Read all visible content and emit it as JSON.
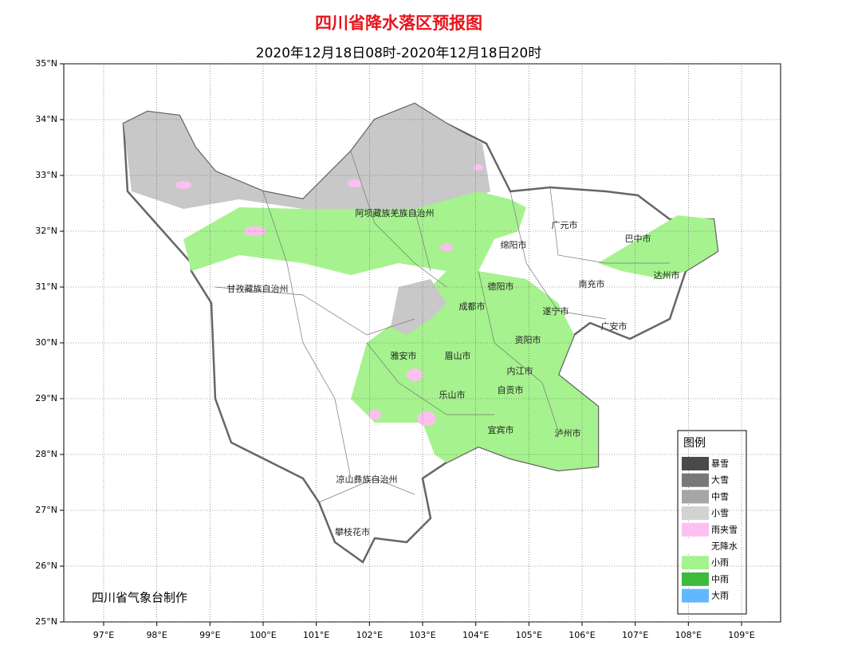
{
  "map": {
    "title": "四川省降水落区预报图",
    "subtitle": "2020年12月18日08时-2020年12月18日20时",
    "xlim": [
      96.25,
      109.735
    ],
    "ylim": [
      25,
      35
    ],
    "xticks": [
      {
        "value": 97,
        "label": "97°E"
      },
      {
        "value": 98,
        "label": "98°E"
      },
      {
        "value": 99,
        "label": "99°E"
      },
      {
        "value": 100,
        "label": "100°E"
      },
      {
        "value": 101,
        "label": "101°E"
      },
      {
        "value": 102,
        "label": "102°E"
      },
      {
        "value": 103,
        "label": "103°E"
      },
      {
        "value": 104,
        "label": "104°E"
      },
      {
        "value": 105,
        "label": "105°E"
      },
      {
        "value": 106,
        "label": "106°E"
      },
      {
        "value": 107,
        "label": "107°E"
      },
      {
        "value": 108,
        "label": "108°E"
      },
      {
        "value": 109,
        "label": "109°E"
      }
    ],
    "yticks": [
      {
        "value": 25,
        "label": "25°N"
      },
      {
        "value": 26,
        "label": "26°N"
      },
      {
        "value": 27,
        "label": "27°N"
      },
      {
        "value": 28,
        "label": "28°N"
      },
      {
        "value": 29,
        "label": "29°N"
      },
      {
        "value": 30,
        "label": "30°N"
      },
      {
        "value": 31,
        "label": "31°N"
      },
      {
        "value": 32,
        "label": "32°N"
      },
      {
        "value": 33,
        "label": "33°N"
      },
      {
        "value": 34,
        "label": "34°N"
      },
      {
        "value": 35,
        "label": "35°N"
      }
    ],
    "grid": true,
    "regions": [
      "阿坝藏族羌族自治州",
      "广元市",
      "巴中市",
      "绵阳市",
      "达州市",
      "甘孜藏族自治州",
      "德阳市",
      "南充市",
      "成都市",
      "遂宁市",
      "广安市",
      "资阳市",
      "雅安市",
      "眉山市",
      "内江市",
      "自贡市",
      "乐山市",
      "宜宾市",
      "泸州市",
      "凉山彝族自治州",
      "攀枝花市"
    ],
    "legend": {
      "title": "图例",
      "items": [
        {
          "label": "暴雪",
          "color": "#4a4a4a"
        },
        {
          "label": "大雪",
          "color": "#787878"
        },
        {
          "label": "中雪",
          "color": "#a6a6a6"
        },
        {
          "label": "小雪",
          "color": "#d2d2d2"
        },
        {
          "label": "雨夹雪",
          "color": "#fcbff0"
        },
        {
          "label": "无降水",
          "color": "#ffffff"
        },
        {
          "label": "小雨",
          "color": "#a6f28f"
        },
        {
          "label": "中雨",
          "color": "#3dba3d"
        },
        {
          "label": "大雨",
          "color": "#61b8ff"
        }
      ]
    },
    "credit": "四川省气象台制作"
  }
}
